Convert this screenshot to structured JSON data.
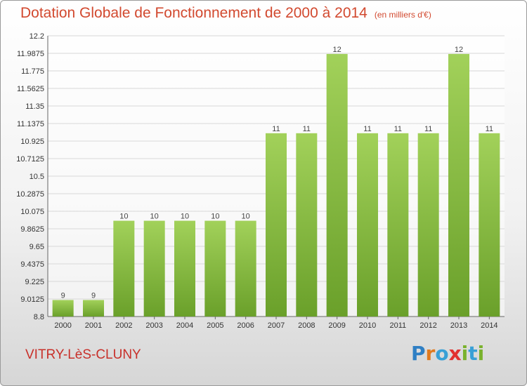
{
  "header": {
    "title": "Dotation Globale de Fonctionnement de 2000 à 2014",
    "unit": "(en milliers d'€)"
  },
  "commune": "VITRY-LèS-CLUNY",
  "logo": {
    "letters": [
      "P",
      "r",
      "o",
      "x",
      "i",
      "t",
      "i"
    ],
    "colors": [
      "#2f7fc4",
      "#e07a1f",
      "#39a0d6",
      "#e2312e",
      "#7ab22d",
      "#39a0d6",
      "#7ab22d"
    ]
  },
  "colors": {
    "bar_light": "#a2d15a",
    "bar_dark": "#6aa02a",
    "grid": "#d8d8d8",
    "axis": "#666666"
  },
  "chart_data": {
    "type": "bar",
    "categories": [
      "2000",
      "2001",
      "2002",
      "2003",
      "2004",
      "2005",
      "2006",
      "2007",
      "2008",
      "2009",
      "2010",
      "2011",
      "2012",
      "2013",
      "2014"
    ],
    "values": [
      9,
      9,
      10,
      10,
      10,
      10,
      10,
      11,
      11,
      12,
      11,
      11,
      11,
      12,
      11
    ],
    "value_labels": [
      "9",
      "9",
      "10",
      "10",
      "10",
      "10",
      "10",
      "11",
      "11",
      "12",
      "11",
      "11",
      "11",
      "12",
      "11"
    ],
    "bar_tops": [
      9.0,
      9.0,
      9.96,
      9.96,
      9.96,
      9.96,
      9.96,
      11.02,
      11.02,
      11.98,
      11.02,
      11.02,
      11.02,
      11.98,
      11.02
    ],
    "yticks": [
      "12.2",
      "11.9875",
      "11.775",
      "11.5625",
      "11.35",
      "11.1375",
      "10.925",
      "10.7125",
      "10.5",
      "10.2875",
      "10.075",
      "9.8625",
      "9.65",
      "9.4375",
      "9.225",
      "9.0125",
      "8.8"
    ],
    "ylim": [
      8.8,
      12.2
    ],
    "grid": true
  }
}
